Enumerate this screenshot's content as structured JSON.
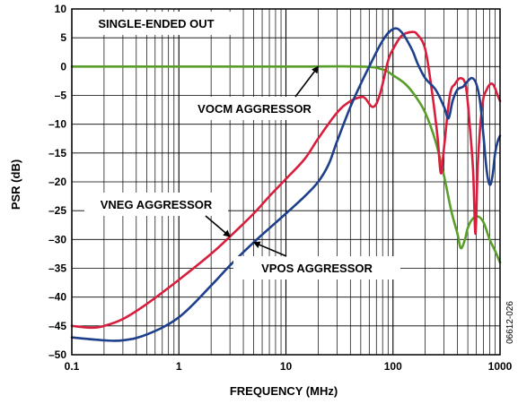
{
  "chart_data": {
    "type": "line",
    "title": "SINGLE-ENDED OUT",
    "xlabel": "FREQUENCY (MHz)",
    "ylabel": "PSR (dB)",
    "x_scale": "log",
    "xlim": [
      0.1,
      1000
    ],
    "ylim": [
      -50,
      10
    ],
    "x_ticks": [
      0.1,
      1,
      10,
      100,
      1000
    ],
    "x_tick_labels": [
      "0.1",
      "1",
      "10",
      "100",
      "1000"
    ],
    "y_ticks": [
      10,
      5,
      0,
      -5,
      -10,
      -15,
      -20,
      -25,
      -30,
      -35,
      -40,
      -45,
      -50
    ],
    "y_tick_labels": [
      "10",
      "5",
      "0",
      "–5",
      "–10",
      "–15",
      "–20",
      "–25",
      "–30",
      "–35",
      "–40",
      "–45",
      "–50"
    ],
    "grid": true,
    "figure_id": "06612-026",
    "series": [
      {
        "name": "VOCM AGGRESSOR",
        "color": "#5a9e2a",
        "points": [
          [
            0.1,
            0
          ],
          [
            1,
            0
          ],
          [
            10,
            0
          ],
          [
            50,
            0
          ],
          [
            80,
            -0.5
          ],
          [
            100,
            -1.5
          ],
          [
            130,
            -3
          ],
          [
            160,
            -5
          ],
          [
            200,
            -8
          ],
          [
            250,
            -13
          ],
          [
            300,
            -19
          ],
          [
            350,
            -25
          ],
          [
            400,
            -29
          ],
          [
            430,
            -31.5
          ],
          [
            470,
            -30
          ],
          [
            500,
            -28
          ],
          [
            550,
            -26.5
          ],
          [
            620,
            -26
          ],
          [
            700,
            -27
          ],
          [
            800,
            -30
          ],
          [
            900,
            -32
          ],
          [
            1000,
            -34
          ]
        ]
      },
      {
        "name": "VNEG AGGRESSOR",
        "color": "#d81e3c",
        "points": [
          [
            0.1,
            -45
          ],
          [
            0.15,
            -45.3
          ],
          [
            0.2,
            -45
          ],
          [
            0.3,
            -43.8
          ],
          [
            0.5,
            -41.2
          ],
          [
            1,
            -37
          ],
          [
            2,
            -32.5
          ],
          [
            3,
            -29.5
          ],
          [
            5,
            -25.5
          ],
          [
            7,
            -22.5
          ],
          [
            10,
            -19.5
          ],
          [
            15,
            -16
          ],
          [
            20,
            -12.5
          ],
          [
            30,
            -8
          ],
          [
            40,
            -6
          ],
          [
            50,
            -5.3
          ],
          [
            55,
            -5.5
          ],
          [
            65,
            -7
          ],
          [
            75,
            -5
          ],
          [
            90,
            1
          ],
          [
            100,
            3
          ],
          [
            120,
            5.3
          ],
          [
            150,
            6
          ],
          [
            170,
            5.5
          ],
          [
            200,
            3
          ],
          [
            230,
            -4
          ],
          [
            260,
            -12
          ],
          [
            280,
            -18.5
          ],
          [
            300,
            -14
          ],
          [
            340,
            -5
          ],
          [
            380,
            -3
          ],
          [
            430,
            -2
          ],
          [
            480,
            -3.5
          ],
          [
            520,
            -10
          ],
          [
            560,
            -18
          ],
          [
            590,
            -29
          ],
          [
            620,
            -17
          ],
          [
            680,
            -7
          ],
          [
            750,
            -4
          ],
          [
            850,
            -3
          ],
          [
            950,
            -5
          ],
          [
            1000,
            -6
          ]
        ]
      },
      {
        "name": "VPOS AGGRESSOR",
        "color": "#1e3f8c",
        "points": [
          [
            0.1,
            -47
          ],
          [
            0.2,
            -47.5
          ],
          [
            0.3,
            -47.5
          ],
          [
            0.5,
            -46.5
          ],
          [
            1,
            -43.5
          ],
          [
            2,
            -38
          ],
          [
            3,
            -34.5
          ],
          [
            5,
            -30.5
          ],
          [
            10,
            -25.5
          ],
          [
            15,
            -22.5
          ],
          [
            20,
            -20
          ],
          [
            25,
            -17
          ],
          [
            30,
            -13
          ],
          [
            40,
            -7
          ],
          [
            50,
            -3
          ],
          [
            60,
            0
          ],
          [
            80,
            4.5
          ],
          [
            100,
            6.5
          ],
          [
            120,
            6
          ],
          [
            150,
            3
          ],
          [
            170,
            0.5
          ],
          [
            200,
            -2
          ],
          [
            250,
            -4
          ],
          [
            300,
            -7
          ],
          [
            330,
            -9
          ],
          [
            360,
            -6
          ],
          [
            400,
            -4
          ],
          [
            450,
            -3.5
          ],
          [
            500,
            -2.5
          ],
          [
            550,
            -2
          ],
          [
            600,
            -3
          ],
          [
            650,
            -6
          ],
          [
            700,
            -12
          ],
          [
            750,
            -18
          ],
          [
            800,
            -20.5
          ],
          [
            850,
            -19
          ],
          [
            900,
            -15
          ],
          [
            950,
            -13
          ],
          [
            1000,
            -12
          ]
        ]
      }
    ],
    "annotations": [
      {
        "text": "SINGLE-ENDED OUT",
        "series": null
      },
      {
        "text": "VOCM AGGRESSOR",
        "series": "VOCM AGGRESSOR",
        "arrow_to": [
          20,
          0
        ]
      },
      {
        "text": "VNEG AGGRESSOR",
        "series": "VNEG AGGRESSOR",
        "arrow_to": [
          3,
          -29.5
        ]
      },
      {
        "text": "VPOS AGGRESSOR",
        "series": "VPOS AGGRESSOR",
        "arrow_to": [
          5,
          -30.5
        ]
      }
    ]
  }
}
